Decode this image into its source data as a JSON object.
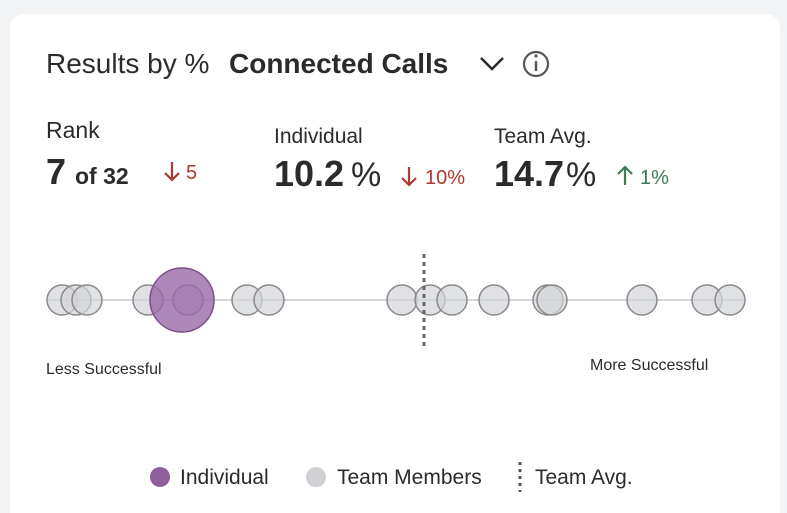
{
  "header": {
    "title_prefix": "Results by %",
    "metric": "Connected Calls"
  },
  "stats": {
    "rank": {
      "label": "Rank",
      "value": 7,
      "of": "of 32",
      "change": 5
    },
    "individual": {
      "label": "Individual",
      "value": 10.2,
      "unit": "%",
      "change": "10%"
    },
    "team_avg": {
      "label": "Team Avg.",
      "value": 14.7,
      "unit": "%",
      "change": "1%"
    }
  },
  "scale": {
    "low_label": "Less Successful",
    "high_label": "More Successful"
  },
  "legend": [
    "Individual",
    "Team Members",
    "Team Avg."
  ]
}
